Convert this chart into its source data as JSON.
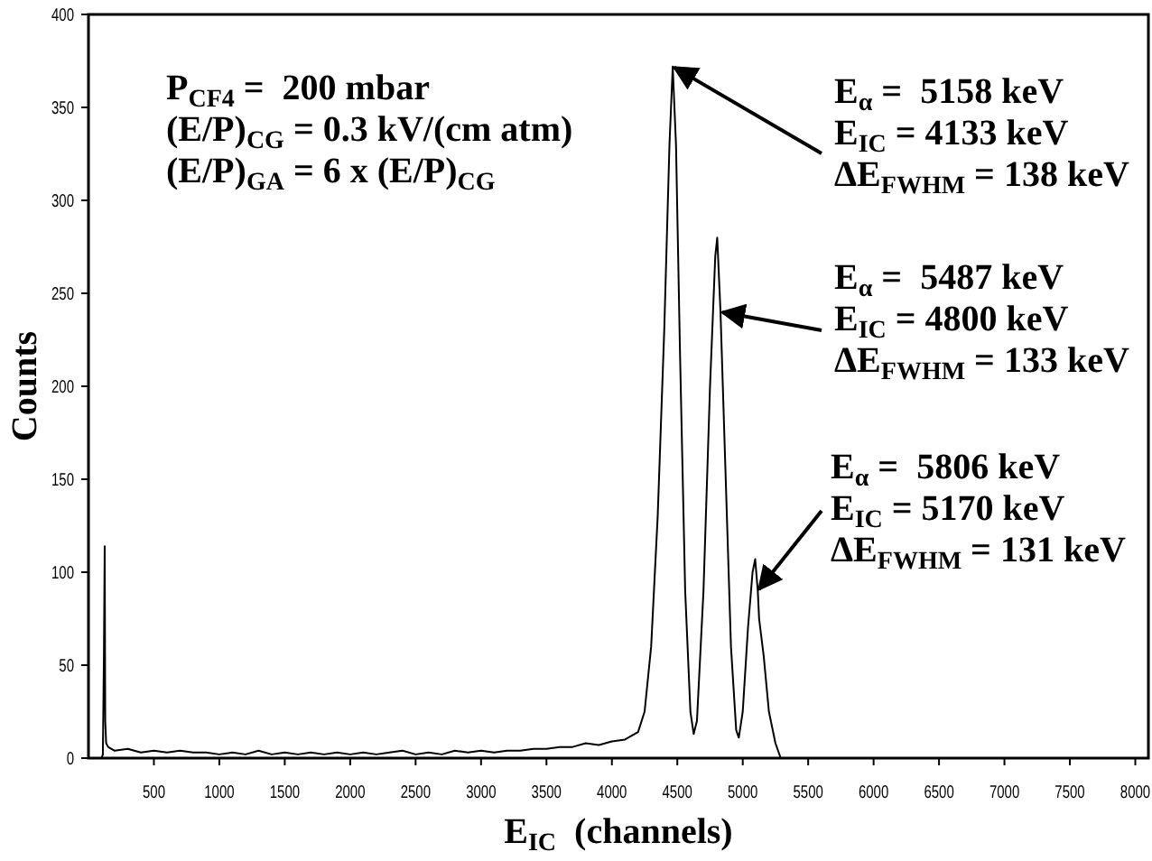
{
  "chart_data": {
    "type": "line",
    "xlabel": "E$_{IC}$  (channels)",
    "ylabel": "Counts",
    "xlim": [
      0,
      8100
    ],
    "ylim": [
      0,
      400
    ],
    "xticks": [
      500,
      1000,
      1500,
      2000,
      2500,
      3000,
      3500,
      4000,
      4500,
      5000,
      5500,
      6000,
      6500,
      7000,
      7500,
      8000
    ],
    "yticks": [
      0,
      50,
      100,
      150,
      200,
      250,
      300,
      350,
      400
    ],
    "grid": false,
    "marker": "none",
    "line_style": "solid",
    "series": [
      {
        "color": "#000000",
        "x": [
          60,
          100,
          110,
          118,
          124,
          128,
          135,
          150,
          200,
          300,
          400,
          500,
          600,
          700,
          800,
          900,
          1000,
          1100,
          1200,
          1300,
          1400,
          1500,
          1600,
          1700,
          1800,
          1900,
          2000,
          2100,
          2200,
          2300,
          2400,
          2500,
          2600,
          2700,
          2800,
          2900,
          3000,
          3100,
          3200,
          3300,
          3400,
          3500,
          3600,
          3700,
          3800,
          3900,
          4000,
          4100,
          4200,
          4250,
          4300,
          4350,
          4400,
          4440,
          4465,
          4490,
          4520,
          4560,
          4600,
          4625,
          4650,
          4700,
          4750,
          4790,
          4805,
          4830,
          4870,
          4910,
          4950,
          4970,
          5000,
          5040,
          5075,
          5095,
          5115,
          5125,
          5160,
          5200,
          5250,
          5290,
          5400,
          8100
        ],
        "values": [
          0,
          0,
          2,
          55,
          114,
          20,
          8,
          6,
          4,
          5,
          3,
          4,
          3,
          4,
          3,
          3,
          2,
          3,
          2,
          4,
          2,
          3,
          2,
          3,
          2,
          3,
          2,
          3,
          2,
          3,
          4,
          2,
          3,
          2,
          4,
          3,
          4,
          3,
          4,
          4,
          5,
          5,
          6,
          6,
          8,
          7,
          9,
          10,
          14,
          25,
          60,
          130,
          230,
          330,
          372,
          330,
          220,
          90,
          25,
          13,
          20,
          90,
          200,
          270,
          280,
          240,
          150,
          60,
          15,
          11,
          25,
          70,
          100,
          107,
          90,
          75,
          55,
          25,
          8,
          0,
          0,
          0
        ]
      }
    ],
    "annotations": [
      "P$_{CF4}$ =  200 mbar",
      "(E/P)$_{CG}$ = 0.3 kV/(cm atm)",
      "(E/P)$_{GA}$ = 6 x (E/P)$_{CG}$",
      "E$_{α}$ =  5158 keV",
      {
        "text": "E$_{IC}$ = 4133 keV",
        "x": 4465,
        "y": 372
      },
      "ΔE$_{FWHM}$ = 138 keV",
      "E$_{α}$ =  5487 keV",
      {
        "text": "E$_{IC}$ = 4800 keV",
        "x": 4830,
        "y": 240
      },
      "ΔE$_{FWHM}$ = 133 keV",
      "E$_{α}$ =  5806 keV",
      {
        "text": "E$_{IC}$ = 5170 keV",
        "x": 5115,
        "y": 90
      },
      "ΔE$_{FWHM}$ = 131 keV"
    ]
  }
}
